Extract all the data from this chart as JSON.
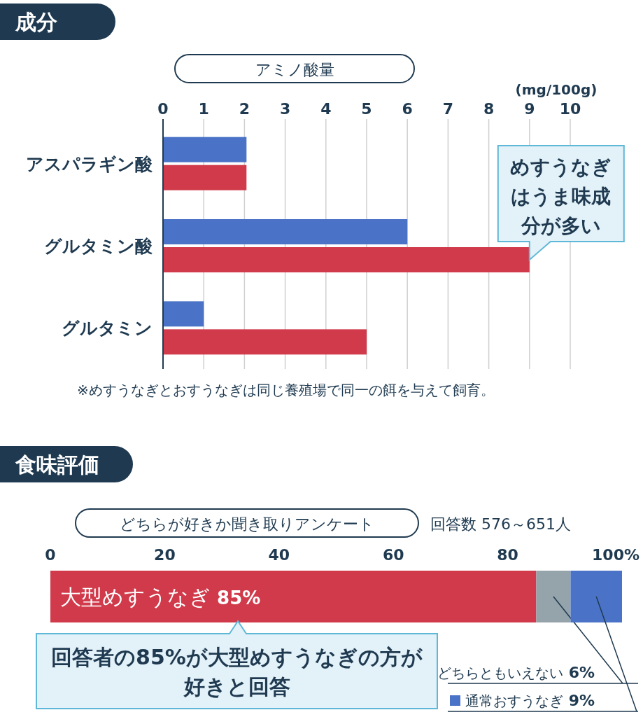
{
  "chart_data": [
    {
      "type": "bar",
      "orientation": "horizontal",
      "title": "成分",
      "subtitle": "アミノ酸量",
      "xlabel": "(mg/100g)",
      "categories": [
        "アスパラギン酸",
        "グルタミン酸",
        "グルタミン"
      ],
      "series": [
        {
          "color": "#4a72c6",
          "values": [
            2.05,
            6.0,
            1.0
          ]
        },
        {
          "color": "#d03a4a",
          "values": [
            2.05,
            9.0,
            5.0
          ]
        }
      ],
      "xlim": [
        0,
        10
      ],
      "xticks": [
        0,
        1,
        2,
        3,
        4,
        5,
        6,
        7,
        8,
        9,
        10
      ],
      "grid": "x",
      "annotations": [
        {
          "text": "めすうなぎはうま味成分が多い",
          "x": 9,
          "y": "グルタミン酸"
        },
        "※めすうなぎとおすうなぎは同じ養殖場で同一の餌を与えて飼育。"
      ]
    },
    {
      "type": "bar",
      "orientation": "horizontal",
      "stacked": true,
      "title": "食味評価",
      "subtitle": "どちらが好きか聞き取りアンケート",
      "categories": [
        null
      ],
      "series": [
        {
          "name": "大型めすうなぎ",
          "color": "#d03a4a",
          "values": [
            85
          ],
          "value_labels": [
            "85%"
          ]
        },
        {
          "name": "どちらともいえない",
          "color": "#95a3ab",
          "values": [
            6
          ],
          "value_labels": [
            "6%"
          ]
        },
        {
          "name": "通常おすうなぎ",
          "color": "#4a72c6",
          "values": [
            9
          ],
          "value_labels": [
            "9%"
          ]
        }
      ],
      "xlim": [
        0,
        100
      ],
      "xticks": [
        0,
        20,
        40,
        60,
        80,
        {
          "value": 100,
          "label": "100%"
        }
      ],
      "grid": false,
      "annotations": [
        "回答数 576～651人",
        "回答者の85%が大型めすうなぎの方が好きと回答"
      ]
    }
  ]
}
